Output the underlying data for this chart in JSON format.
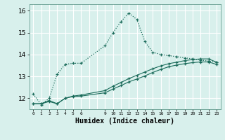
{
  "xlabel": "Humidex (Indice chaleur)",
  "bg_color": "#d8f0ec",
  "grid_color": "#ffffff",
  "line_color": "#1a6b5a",
  "xlim": [
    -0.5,
    23.5
  ],
  "ylim": [
    11.5,
    16.3
  ],
  "yticks": [
    12,
    13,
    14,
    15,
    16
  ],
  "xticks": [
    0,
    1,
    2,
    3,
    4,
    5,
    6,
    9,
    10,
    11,
    12,
    13,
    14,
    15,
    16,
    17,
    18,
    19,
    20,
    21,
    22,
    23
  ],
  "xtick_labels": [
    "0",
    "1",
    "2",
    "3",
    "4",
    "5",
    "6",
    "9",
    "10",
    "11",
    "12",
    "13",
    "14",
    "15",
    "16",
    "17",
    "18",
    "19",
    "20",
    "21",
    "22",
    "23"
  ],
  "series1_x": [
    0,
    1,
    2,
    3,
    4,
    5,
    6,
    9,
    10,
    11,
    12,
    13,
    14,
    15,
    16,
    17,
    18,
    19,
    20,
    21,
    22,
    23
  ],
  "series1_y": [
    12.2,
    11.7,
    12.0,
    13.1,
    13.55,
    13.6,
    13.6,
    14.4,
    15.0,
    15.5,
    15.9,
    15.6,
    14.6,
    14.1,
    14.0,
    13.95,
    13.9,
    13.85,
    13.8,
    13.75,
    13.7,
    13.65
  ],
  "series2_x": [
    0,
    1,
    2,
    3,
    4,
    5,
    6,
    9,
    10,
    11,
    12,
    13,
    14,
    15,
    16,
    17,
    18,
    19,
    20,
    21,
    22,
    23
  ],
  "series2_y": [
    11.75,
    11.75,
    11.9,
    11.75,
    12.0,
    12.1,
    12.15,
    12.35,
    12.55,
    12.72,
    12.9,
    13.05,
    13.2,
    13.35,
    13.48,
    13.58,
    13.65,
    13.72,
    13.77,
    13.8,
    13.8,
    13.65
  ],
  "series3_x": [
    0,
    1,
    2,
    3,
    4,
    5,
    6,
    9,
    10,
    11,
    12,
    13,
    14,
    15,
    16,
    17,
    18,
    19,
    20,
    21,
    22,
    23
  ],
  "series3_y": [
    11.75,
    11.75,
    11.85,
    11.75,
    12.0,
    12.08,
    12.1,
    12.25,
    12.42,
    12.58,
    12.75,
    12.88,
    13.02,
    13.18,
    13.32,
    13.44,
    13.52,
    13.58,
    13.63,
    13.66,
    13.66,
    13.55
  ]
}
